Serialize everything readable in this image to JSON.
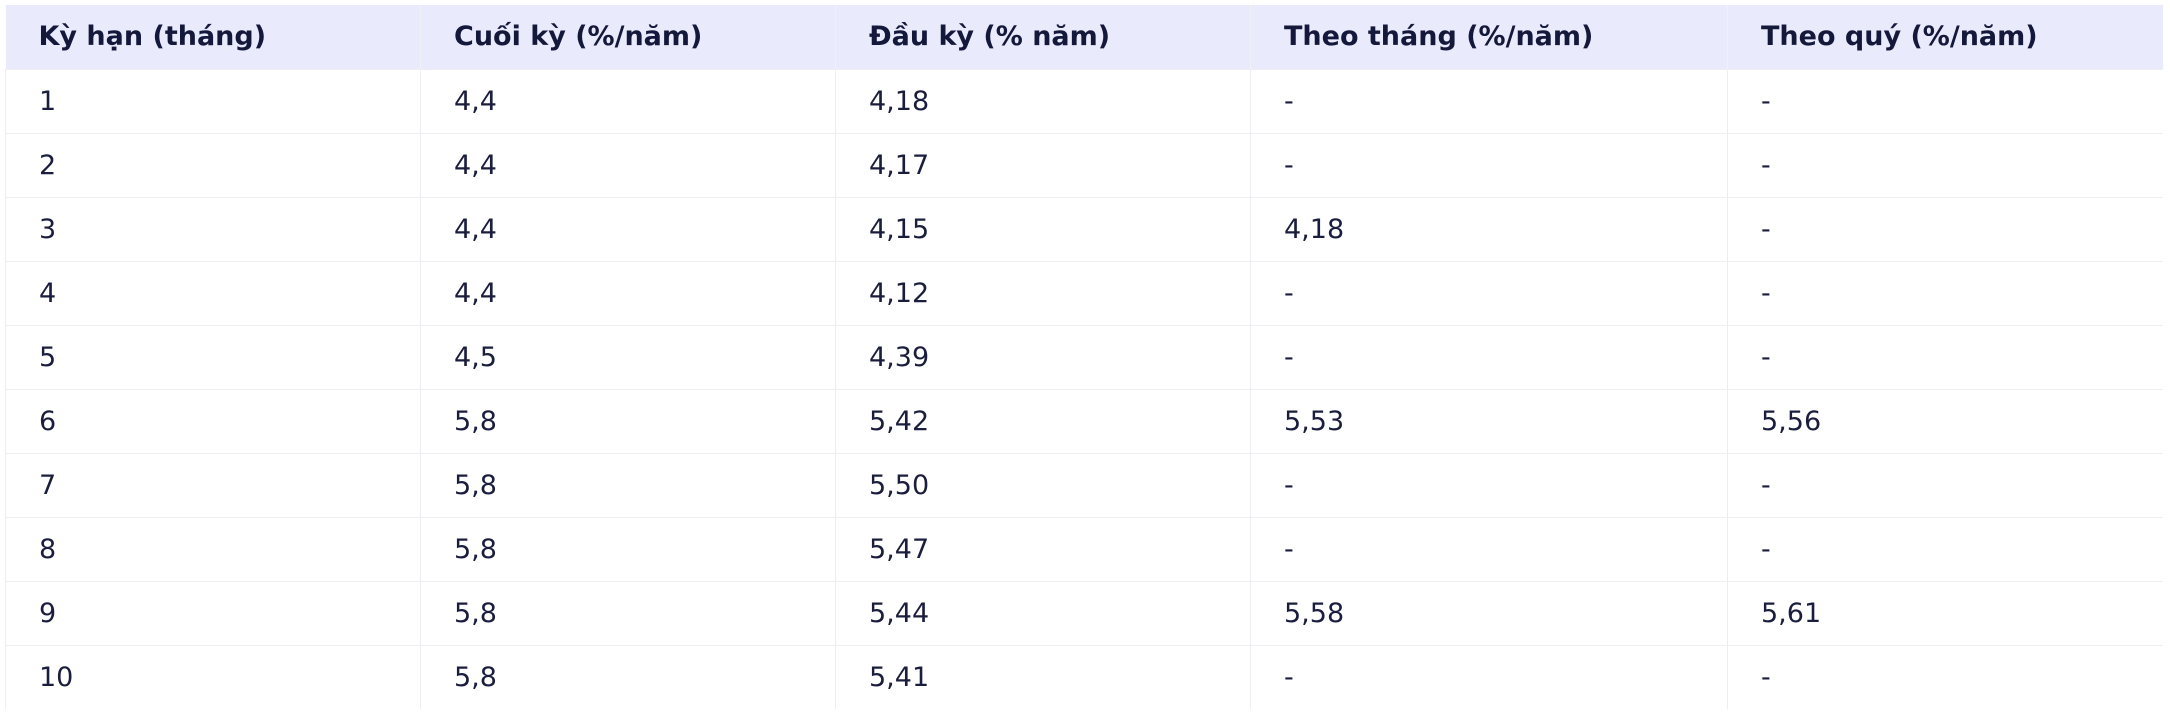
{
  "table": {
    "headers": [
      "Kỳ hạn (tháng)",
      "Cuối kỳ (%/năm)",
      "Đầu kỳ (% năm)",
      "Theo tháng (%/năm)",
      "Theo quý (%/năm)"
    ],
    "rows": [
      [
        "1",
        "4,4",
        "4,18",
        "-",
        "-"
      ],
      [
        "2",
        "4,4",
        "4,17",
        "-",
        "-"
      ],
      [
        "3",
        "4,4",
        "4,15",
        "4,18",
        "-"
      ],
      [
        "4",
        "4,4",
        "4,12",
        "-",
        "-"
      ],
      [
        "5",
        "4,5",
        "4,39",
        "-",
        "-"
      ],
      [
        "6",
        "5,8",
        "5,42",
        "5,53",
        "5,56"
      ],
      [
        "7",
        "5,8",
        "5,50",
        "-",
        "-"
      ],
      [
        "8",
        "5,8",
        "5,47",
        "-",
        "-"
      ],
      [
        "9",
        "5,8",
        "5,44",
        "5,58",
        "5,61"
      ],
      [
        "10",
        "5,8",
        "5,41",
        "-",
        "-"
      ]
    ]
  }
}
